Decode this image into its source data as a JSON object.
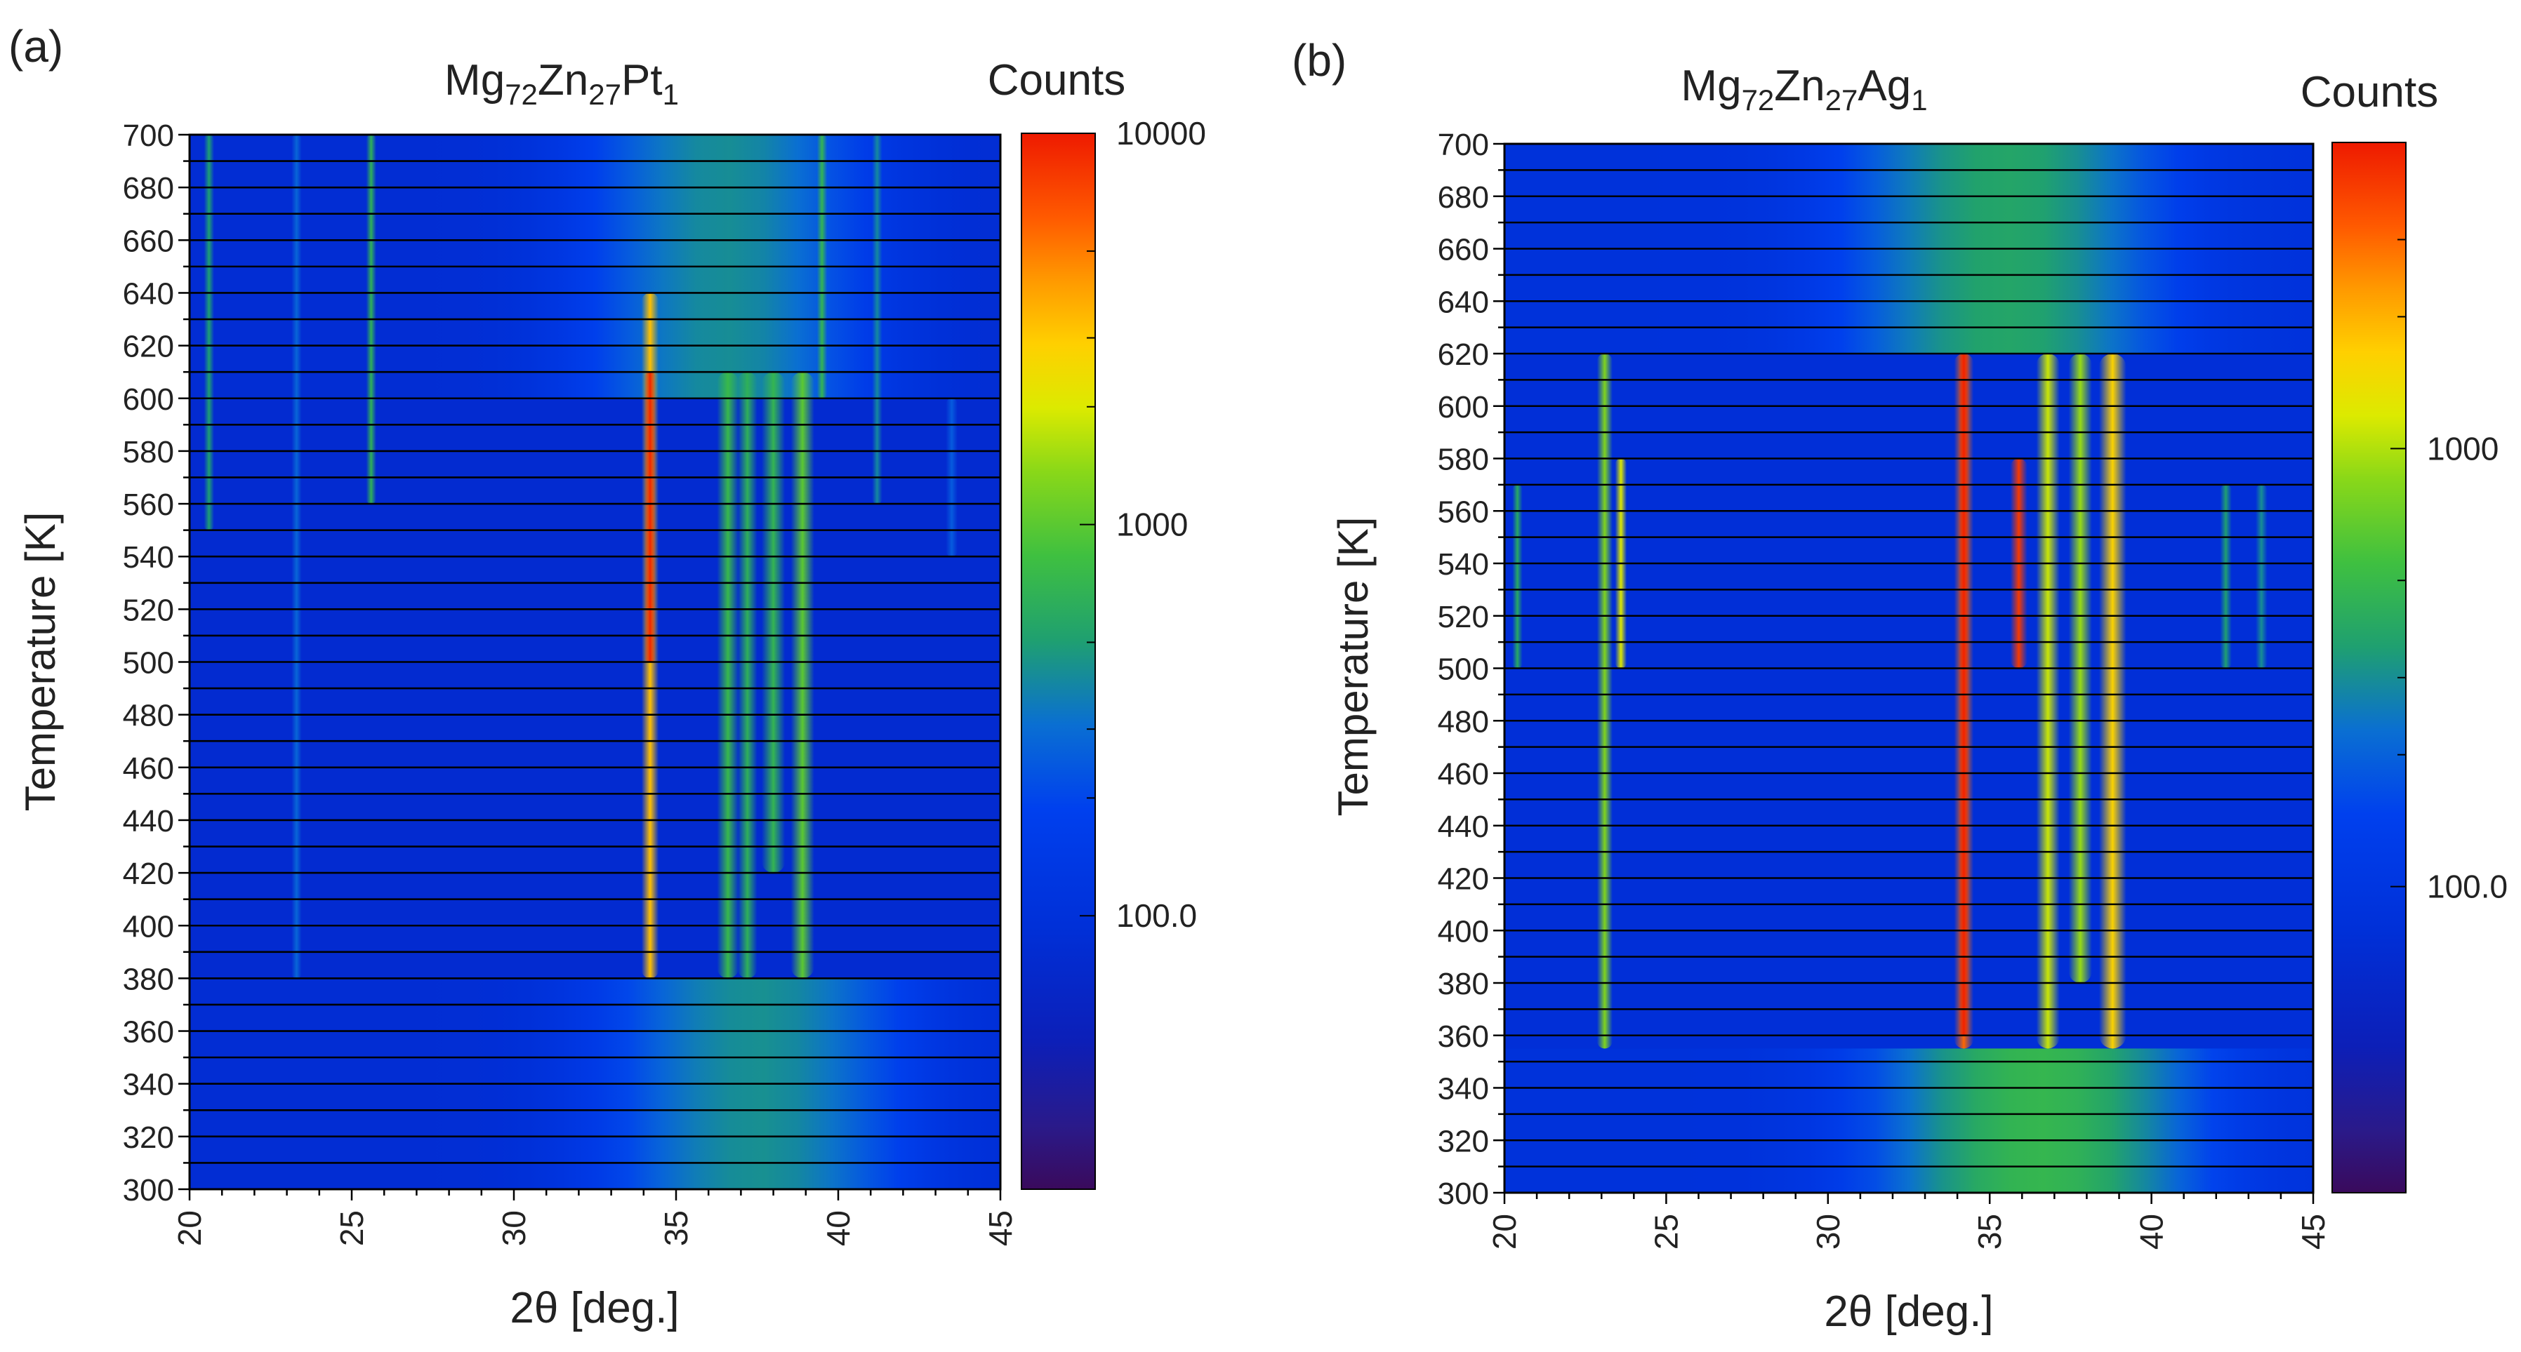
{
  "chart_data": [
    {
      "panel_label": "(a)",
      "type": "heatmap",
      "title": {
        "base": [
          "Mg",
          "Zn",
          "Pt"
        ],
        "subs": [
          "72",
          "27",
          "1"
        ]
      },
      "xlabel": "2θ [deg.]",
      "ylabel": "Temperature [K]",
      "xlim": [
        20,
        45
      ],
      "ylim": [
        300,
        700
      ],
      "x_ticks": [
        20,
        25,
        30,
        35,
        40,
        45
      ],
      "y_ticks": [
        300,
        320,
        340,
        360,
        380,
        400,
        420,
        440,
        460,
        480,
        500,
        520,
        540,
        560,
        580,
        600,
        620,
        640,
        660,
        680,
        700
      ],
      "scan_temperatures_step": 10,
      "colorbar": {
        "title": "Counts",
        "scale": "log",
        "range": [
          20,
          10000
        ],
        "tick_labels": [
          {
            "value": 10000,
            "label": "10000"
          },
          {
            "value": 1000,
            "label": "1000"
          },
          {
            "value": 100,
            "label": "100.0"
          }
        ]
      },
      "regions": [
        {
          "t_range": [
            600,
            700
          ],
          "description": "high-T amorphous/liquid halo",
          "halo_center": 36.5,
          "halo_width": 3.5,
          "halo_level": 420
        },
        {
          "t_range": [
            380,
            600
          ],
          "description": "crystalline phases"
        },
        {
          "t_range": [
            300,
            380
          ],
          "description": "as-prepared amorphous halo",
          "halo_center": 37.5,
          "halo_width": 3.8,
          "halo_level": 430
        }
      ],
      "peaks": [
        {
          "x": 20.6,
          "t_range": [
            550,
            700
          ],
          "counts": 500,
          "width": 0.12
        },
        {
          "x": 23.3,
          "t_range": [
            380,
            700
          ],
          "counts": 280,
          "width": 0.1
        },
        {
          "x": 25.6,
          "t_range": [
            560,
            700
          ],
          "counts": 650,
          "width": 0.1
        },
        {
          "x": 34.2,
          "t_range": [
            380,
            640
          ],
          "counts": 3200,
          "width": 0.22
        },
        {
          "x": 34.2,
          "t_range": [
            500,
            610
          ],
          "counts": 9500,
          "width": 0.15
        },
        {
          "x": 36.6,
          "t_range": [
            380,
            610
          ],
          "counts": 750,
          "width": 0.28
        },
        {
          "x": 37.2,
          "t_range": [
            380,
            610
          ],
          "counts": 650,
          "width": 0.25
        },
        {
          "x": 38.0,
          "t_range": [
            420,
            610
          ],
          "counts": 700,
          "width": 0.3
        },
        {
          "x": 38.9,
          "t_range": [
            380,
            610
          ],
          "counts": 1000,
          "width": 0.3
        },
        {
          "x": 39.5,
          "t_range": [
            600,
            700
          ],
          "counts": 700,
          "width": 0.12
        },
        {
          "x": 41.2,
          "t_range": [
            560,
            700
          ],
          "counts": 400,
          "width": 0.12
        },
        {
          "x": 43.5,
          "t_range": [
            540,
            600
          ],
          "counts": 250,
          "width": 0.15
        }
      ]
    },
    {
      "panel_label": "(b)",
      "type": "heatmap",
      "title": {
        "base": [
          "Mg",
          "Zn",
          "Ag"
        ],
        "subs": [
          "72",
          "27",
          "1"
        ]
      },
      "xlabel": "2θ [deg.]",
      "ylabel": "Temperature [K]",
      "xlim": [
        20,
        45
      ],
      "ylim": [
        300,
        700
      ],
      "x_ticks": [
        20,
        25,
        30,
        35,
        40,
        45
      ],
      "y_ticks": [
        300,
        320,
        340,
        360,
        380,
        400,
        420,
        440,
        460,
        480,
        500,
        520,
        540,
        560,
        580,
        600,
        620,
        640,
        660,
        680,
        700
      ],
      "scan_temperatures_step": 10,
      "colorbar": {
        "title": "Counts",
        "scale": "log",
        "range": [
          20,
          5000
        ],
        "tick_labels": [
          {
            "value": 1000,
            "label": "1000"
          },
          {
            "value": 100,
            "label": "100.0"
          }
        ]
      },
      "regions": [
        {
          "t_range": [
            620,
            700
          ],
          "description": "high-T amorphous/liquid halo",
          "halo_center": 35.5,
          "halo_width": 4.0,
          "halo_level": 380
        },
        {
          "t_range": [
            355,
            620
          ],
          "description": "crystalline phases"
        },
        {
          "t_range": [
            300,
            355
          ],
          "description": "as-prepared amorphous halo",
          "halo_center": 36.5,
          "halo_width": 4.0,
          "halo_level": 480
        }
      ],
      "peaks": [
        {
          "x": 20.4,
          "t_range": [
            500,
            570
          ],
          "counts": 400,
          "width": 0.12
        },
        {
          "x": 23.1,
          "t_range": [
            355,
            620
          ],
          "counts": 800,
          "width": 0.2
        },
        {
          "x": 23.6,
          "t_range": [
            500,
            580
          ],
          "counts": 1200,
          "width": 0.15
        },
        {
          "x": 34.2,
          "t_range": [
            355,
            620
          ],
          "counts": 3000,
          "width": 0.25
        },
        {
          "x": 34.2,
          "t_range": [
            360,
            620
          ],
          "counts": 4800,
          "width": 0.14
        },
        {
          "x": 35.9,
          "t_range": [
            500,
            580
          ],
          "counts": 4000,
          "width": 0.22
        },
        {
          "x": 36.8,
          "t_range": [
            355,
            620
          ],
          "counts": 1100,
          "width": 0.3
        },
        {
          "x": 37.8,
          "t_range": [
            380,
            620
          ],
          "counts": 900,
          "width": 0.3
        },
        {
          "x": 38.8,
          "t_range": [
            355,
            620
          ],
          "counts": 1600,
          "width": 0.35
        },
        {
          "x": 42.3,
          "t_range": [
            500,
            570
          ],
          "counts": 350,
          "width": 0.15
        },
        {
          "x": 43.4,
          "t_range": [
            500,
            570
          ],
          "counts": 300,
          "width": 0.15
        }
      ]
    }
  ]
}
